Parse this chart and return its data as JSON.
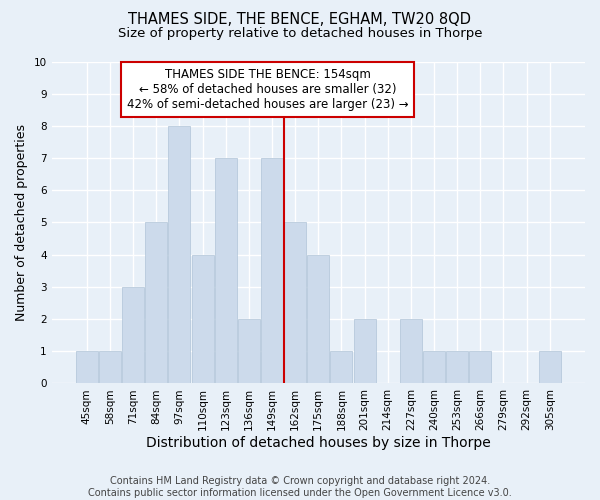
{
  "title": "THAMES SIDE, THE BENCE, EGHAM, TW20 8QD",
  "subtitle": "Size of property relative to detached houses in Thorpe",
  "xlabel": "Distribution of detached houses by size in Thorpe",
  "ylabel": "Number of detached properties",
  "categories": [
    "45sqm",
    "58sqm",
    "71sqm",
    "84sqm",
    "97sqm",
    "110sqm",
    "123sqm",
    "136sqm",
    "149sqm",
    "162sqm",
    "175sqm",
    "188sqm",
    "201sqm",
    "214sqm",
    "227sqm",
    "240sqm",
    "253sqm",
    "266sqm",
    "279sqm",
    "292sqm",
    "305sqm"
  ],
  "values": [
    1,
    1,
    3,
    5,
    8,
    4,
    7,
    2,
    7,
    5,
    4,
    1,
    2,
    0,
    2,
    1,
    1,
    1,
    0,
    0,
    1
  ],
  "bar_color": "#ccdaeb",
  "bar_edge_color": "#b0c4d8",
  "marker_index": 8,
  "marker_label": "THAMES SIDE THE BENCE: 154sqm",
  "annotation_line1": "← 58% of detached houses are smaller (32)",
  "annotation_line2": "42% of semi-detached houses are larger (23) →",
  "marker_color": "#cc0000",
  "box_edge_color": "#cc0000",
  "ylim": [
    0,
    10
  ],
  "yticks": [
    0,
    1,
    2,
    3,
    4,
    5,
    6,
    7,
    8,
    9,
    10
  ],
  "footer": "Contains HM Land Registry data © Crown copyright and database right 2024.\nContains public sector information licensed under the Open Government Licence v3.0.",
  "bg_color": "#e8f0f8",
  "plot_bg_color": "#e8f0f8",
  "grid_color": "#ffffff",
  "title_fontsize": 10.5,
  "subtitle_fontsize": 9.5,
  "xlabel_fontsize": 10,
  "ylabel_fontsize": 9,
  "tick_fontsize": 7.5,
  "footer_fontsize": 7,
  "annot_fontsize": 8.5
}
